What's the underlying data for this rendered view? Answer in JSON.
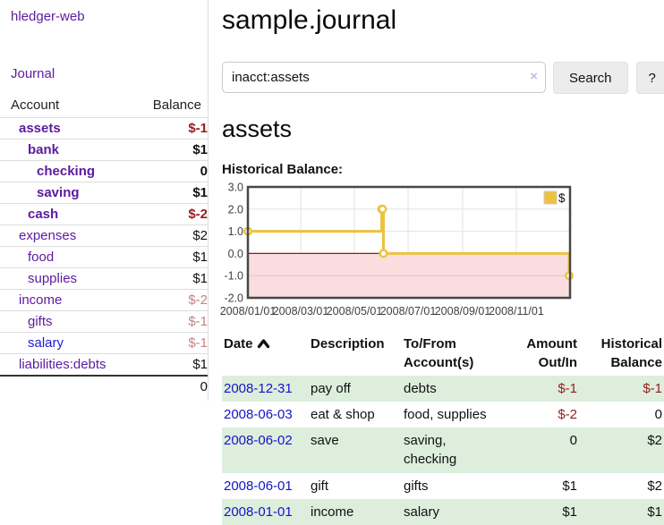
{
  "colors": {
    "link_purple": "#5d1a9e",
    "link_blue": "#1414cc",
    "negative_strong": "#961c1c",
    "negative_soft": "#c38484",
    "series_gold": "#edc240",
    "negative_region_pink": "#fadadb",
    "zero_line_red": "#8b1c1c",
    "row_stripe_green": "#ddeedd",
    "chart_border": "#474747"
  },
  "sidebar": {
    "brand": "hledger-web",
    "journal_link": "Journal",
    "header": {
      "account": "Account",
      "balance": "Balance"
    },
    "accounts": [
      {
        "label": "assets",
        "depth": 1,
        "bold": true,
        "balance": "$-1",
        "amount_class": "neg-strong",
        "link_class": ""
      },
      {
        "label": "bank",
        "depth": 2,
        "bold": true,
        "balance": "$1",
        "amount_class": "",
        "link_class": ""
      },
      {
        "label": "checking",
        "depth": 3,
        "bold": true,
        "balance": "0",
        "amount_class": "",
        "link_class": ""
      },
      {
        "label": "saving",
        "depth": 3,
        "bold": true,
        "balance": "$1",
        "amount_class": "",
        "link_class": ""
      },
      {
        "label": "cash",
        "depth": 2,
        "bold": true,
        "balance": "$-2",
        "amount_class": "neg-strong",
        "link_class": ""
      },
      {
        "label": "expenses",
        "depth": 1,
        "bold": false,
        "balance": "$2",
        "amount_class": "",
        "link_class": ""
      },
      {
        "label": "food",
        "depth": 2,
        "bold": false,
        "balance": "$1",
        "amount_class": "",
        "link_class": ""
      },
      {
        "label": "supplies",
        "depth": 2,
        "bold": false,
        "balance": "$1",
        "amount_class": "",
        "link_class": ""
      },
      {
        "label": "income",
        "depth": 1,
        "bold": false,
        "balance": "$-2",
        "amount_class": "neg-soft",
        "link_class": ""
      },
      {
        "label": "gifts",
        "depth": 2,
        "bold": false,
        "balance": "$-1",
        "amount_class": "neg-soft",
        "link_class": ""
      },
      {
        "label": "salary",
        "depth": 2,
        "bold": false,
        "balance": "$-1",
        "amount_class": "neg-soft",
        "link_class": "blue"
      },
      {
        "label": "liabilities:debts",
        "depth": 1,
        "bold": false,
        "balance": "$1",
        "amount_class": "",
        "link_class": ""
      }
    ],
    "total": "0"
  },
  "main": {
    "title": "sample.journal",
    "search": {
      "value": "inacct:assets",
      "clear_icon": "×",
      "search_button": "Search",
      "help_button": "?"
    },
    "account_heading": "assets",
    "chart_heading": "Historical Balance:"
  },
  "chart_data": {
    "type": "line",
    "step": true,
    "title": "Historical Balance:",
    "legend": [
      {
        "label": "$",
        "color": "#edc240"
      }
    ],
    "legend_position": "top-right",
    "x": [
      "2008-01-01",
      "2008-06-01",
      "2008-06-02",
      "2008-06-03",
      "2008-12-31"
    ],
    "values": [
      1,
      2,
      2,
      0,
      -1
    ],
    "xrange": [
      "2008-01-01",
      "2009-01-01"
    ],
    "ylim": [
      -2,
      3
    ],
    "yticks": [
      3.0,
      2.0,
      1.0,
      0.0,
      -1.0,
      -2.0
    ],
    "ytick_labels": [
      "3.0",
      "2.0",
      "1.0",
      "0.0",
      "-1.0",
      "-2.0"
    ],
    "xtick_labels": [
      "2008/01/01",
      "2008/03/01",
      "2008/05/01",
      "2008/07/01",
      "2008/09/01",
      "2008/11/01"
    ],
    "xtick_days": [
      0,
      60,
      121,
      182,
      244,
      305
    ],
    "grid": true,
    "negative_region_shaded": true
  },
  "register": {
    "headers": {
      "date": "Date",
      "description": "Description",
      "accounts": "To/From Account(s)",
      "amount": "Amount Out/In",
      "balance": "Historical Balance"
    },
    "rows": [
      {
        "date": "2008-12-31",
        "description": "pay off",
        "accounts": "debts",
        "amount": "$-1",
        "balance": "$-1",
        "amount_neg": true,
        "balance_neg": true,
        "shaded": true
      },
      {
        "date": "2008-06-03",
        "description": "eat & shop",
        "accounts": "food, supplies",
        "amount": "$-2",
        "balance": "0",
        "amount_neg": true,
        "balance_neg": false,
        "shaded": false
      },
      {
        "date": "2008-06-02",
        "description": "save",
        "accounts": "saving, checking",
        "amount": "0",
        "balance": "$2",
        "amount_neg": false,
        "balance_neg": false,
        "shaded": true
      },
      {
        "date": "2008-06-01",
        "description": "gift",
        "accounts": "gifts",
        "amount": "$1",
        "balance": "$2",
        "amount_neg": false,
        "balance_neg": false,
        "shaded": false
      },
      {
        "date": "2008-01-01",
        "description": "income",
        "accounts": "salary",
        "amount": "$1",
        "balance": "$1",
        "amount_neg": false,
        "balance_neg": false,
        "shaded": true
      }
    ]
  }
}
